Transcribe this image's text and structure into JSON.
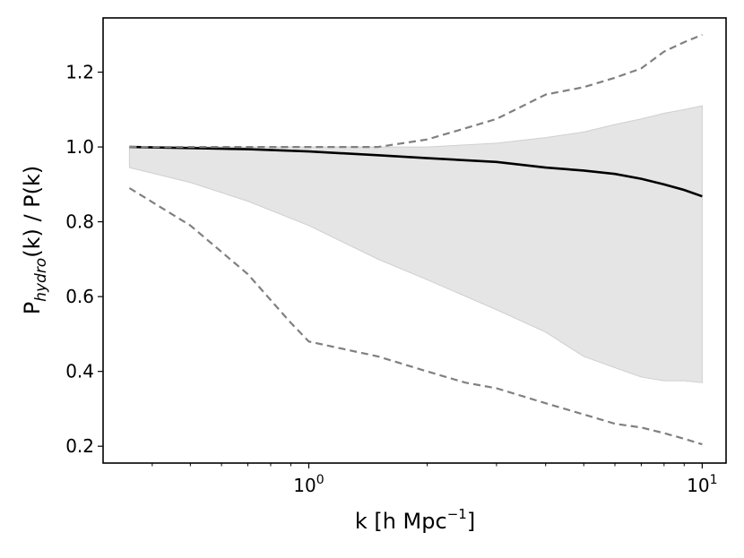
{
  "chart_data": {
    "type": "line",
    "xscale": "log",
    "xlim": [
      0.3,
      11.5
    ],
    "ylim": [
      0.155,
      1.345
    ],
    "xlabel": {
      "main": "k [h Mpc",
      "sup": "−1",
      "end": "]"
    },
    "ylabel": {
      "main": "P",
      "sub": "hydro",
      "end": "(k) / P(k)"
    },
    "xticks": [
      {
        "value": 1,
        "base": "10",
        "exp": "0"
      },
      {
        "value": 10,
        "base": "10",
        "exp": "1"
      }
    ],
    "xminorticks": [
      0.4,
      0.5,
      0.6,
      0.7,
      0.8,
      0.9,
      2,
      3,
      4,
      5,
      6,
      7,
      8,
      9
    ],
    "yticks": [
      {
        "value": 0.2,
        "label": "0.2"
      },
      {
        "value": 0.4,
        "label": "0.4"
      },
      {
        "value": 0.6,
        "label": "0.6"
      },
      {
        "value": 0.8,
        "label": "0.8"
      },
      {
        "value": 1.0,
        "label": "1.0"
      },
      {
        "value": 1.2,
        "label": "1.2"
      }
    ],
    "band": {
      "color": "#e5e5e5",
      "edge_color": "#cfcfcf",
      "x": [
        0.35,
        0.5,
        0.7,
        1.0,
        1.5,
        2.0,
        3.0,
        4.0,
        5.0,
        6.0,
        7.0,
        8.0,
        9.0,
        10.0
      ],
      "lower": [
        0.945,
        0.905,
        0.855,
        0.79,
        0.7,
        0.645,
        0.565,
        0.505,
        0.44,
        0.41,
        0.385,
        0.375,
        0.375,
        0.37
      ],
      "upper": [
        1.0,
        1.0,
        1.0,
        1.0,
        1.0,
        1.0,
        1.01,
        1.025,
        1.04,
        1.06,
        1.075,
        1.09,
        1.1,
        1.11
      ]
    },
    "series": [
      {
        "style": "solid",
        "color": "#000000",
        "x": [
          0.35,
          0.5,
          0.7,
          1.0,
          1.5,
          2.0,
          3.0,
          4.0,
          5.0,
          6.0,
          7.0,
          8.0,
          9.0,
          10.0
        ],
        "y": [
          1.0,
          0.997,
          0.994,
          0.988,
          0.978,
          0.97,
          0.96,
          0.945,
          0.937,
          0.928,
          0.915,
          0.9,
          0.885,
          0.868
        ]
      },
      {
        "style": "dashed",
        "color": "#808080",
        "x": [
          0.35,
          0.5,
          0.7,
          1.0,
          1.5,
          2.0,
          2.5,
          3.0,
          4.0,
          5.0,
          6.0,
          7.0,
          8.0,
          9.0,
          10.0
        ],
        "y": [
          1.0,
          1.0,
          1.0,
          1.0,
          1.0,
          1.02,
          1.05,
          1.075,
          1.14,
          1.16,
          1.185,
          1.21,
          1.255,
          1.28,
          1.3
        ]
      },
      {
        "style": "dashed",
        "color": "#808080",
        "x": [
          0.35,
          0.5,
          0.7,
          0.9,
          1.0,
          1.5,
          2.0,
          2.5,
          3.0,
          4.0,
          5.0,
          6.0,
          7.0,
          8.0,
          9.0,
          10.0
        ],
        "y": [
          0.89,
          0.79,
          0.66,
          0.53,
          0.48,
          0.44,
          0.4,
          0.37,
          0.355,
          0.315,
          0.285,
          0.26,
          0.25,
          0.235,
          0.22,
          0.205
        ]
      }
    ]
  }
}
